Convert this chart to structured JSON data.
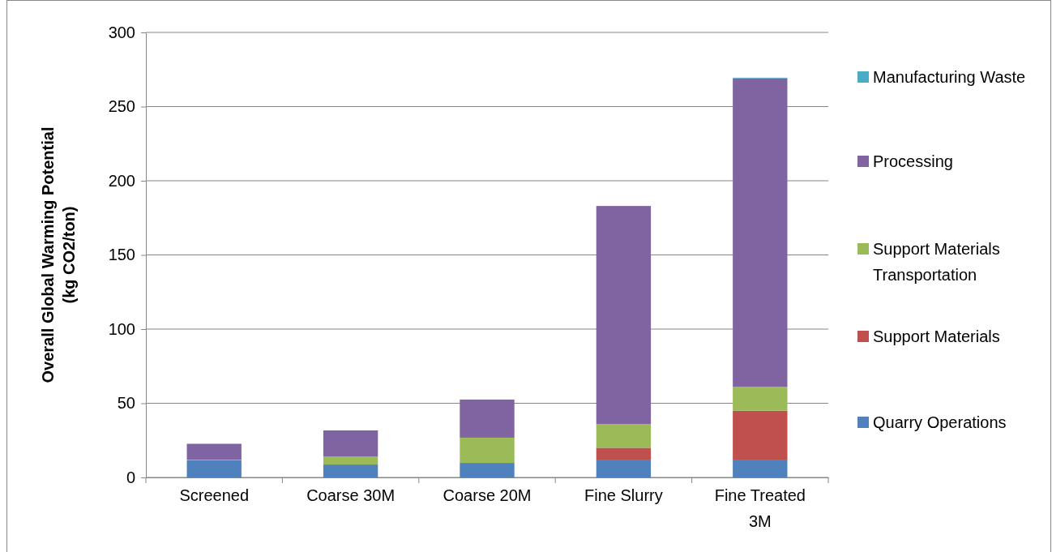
{
  "chart_data": {
    "type": "bar",
    "stacked": true,
    "ylabel": "Overall Global Warming Potential (kg CO2/ton)",
    "categories": [
      "Screened",
      "Coarse 30M",
      "Coarse 20M",
      "Fine Slurry",
      "Fine Treated 3M"
    ],
    "series": [
      {
        "name": "Quarry Operations",
        "color": "#4f81bd",
        "values": [
          11.5,
          8.7,
          9.8,
          12,
          12
        ]
      },
      {
        "name": "Support Materials",
        "color": "#c0504d",
        "values": [
          0,
          0,
          0,
          8,
          33
        ]
      },
      {
        "name": "Support Materials Transportation",
        "color": "#9bbb59",
        "values": [
          0.5,
          5.5,
          17,
          16,
          16
        ]
      },
      {
        "name": "Processing",
        "color": "#8064a2",
        "values": [
          10.5,
          17.5,
          25.7,
          147,
          208
        ]
      },
      {
        "name": "Manufacturing Waste",
        "color": "#4bacc6",
        "values": [
          0.3,
          0,
          0,
          0,
          0.5
        ]
      }
    ],
    "ylim": [
      0,
      300
    ],
    "yticks": [
      0,
      50,
      100,
      150,
      200,
      250,
      300
    ],
    "grid": "y",
    "legend": "right"
  }
}
